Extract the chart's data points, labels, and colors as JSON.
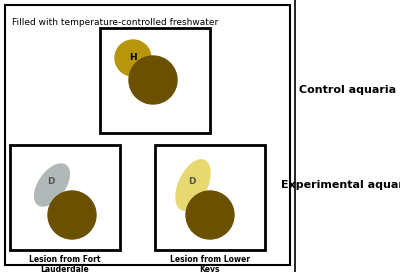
{
  "bg_color": "#ffffff",
  "top_text": "Filled with temperature-controlled freshwater",
  "right_label_control": "Control aquaria",
  "right_label_experimental": "Experimental aquaria",
  "label1": "Lesion from Fort\nLauderdale",
  "label2": "Lesion from Lower\nKeys",
  "coral_dark": "#6b5000",
  "coral_golden": "#b8960c",
  "lesion_gray": "#b0b8b8",
  "lesion_yellow": "#e8d870",
  "fig_width": 4.0,
  "fig_height": 2.72,
  "dpi": 100
}
